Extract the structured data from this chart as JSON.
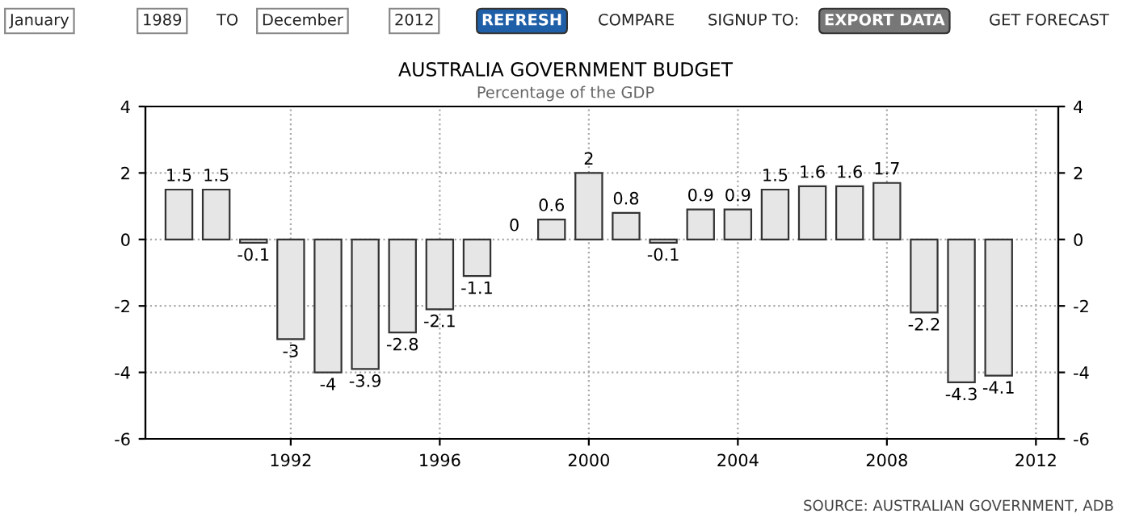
{
  "chart_data": {
    "type": "bar",
    "title": "AUSTRALIA GOVERNMENT BUDGET",
    "subtitle": "Percentage of the GDP",
    "x": [
      1989,
      1990,
      1991,
      1992,
      1993,
      1994,
      1995,
      1996,
      1997,
      1998,
      1999,
      2000,
      2001,
      2002,
      2003,
      2004,
      2005,
      2006,
      2007,
      2008,
      2009,
      2010,
      2011
    ],
    "values": [
      1.5,
      1.5,
      -0.1,
      -3,
      -4,
      -3.9,
      -2.8,
      -2.1,
      -1.1,
      0,
      0.6,
      2,
      0.8,
      -0.1,
      0.9,
      0.9,
      1.5,
      1.6,
      1.6,
      1.7,
      -2.2,
      -4.3,
      -4.1
    ],
    "color": "#e6e6e6",
    "data_labels": true,
    "xlim": [
      1988.1,
      2012.6
    ],
    "xticks": [
      1992,
      1996,
      2000,
      2004,
      2008,
      2012
    ],
    "ylim": [
      -6,
      4
    ],
    "yticks": [
      -6,
      -4,
      -2,
      0,
      2,
      4
    ],
    "y2lim": [
      -6,
      4
    ],
    "y2ticks": [
      -6,
      -4,
      -2,
      0,
      2,
      4
    ],
    "grid": true,
    "annotations": [
      "January",
      "1989",
      "TO",
      "December",
      "2012",
      "REFRESH",
      "COMPARE",
      "SIGNUP TO:",
      "EXPORT DATA",
      "GET FORECAST",
      "SOURCE: AUSTRALIAN GOVERNMENT, ADB"
    ]
  }
}
